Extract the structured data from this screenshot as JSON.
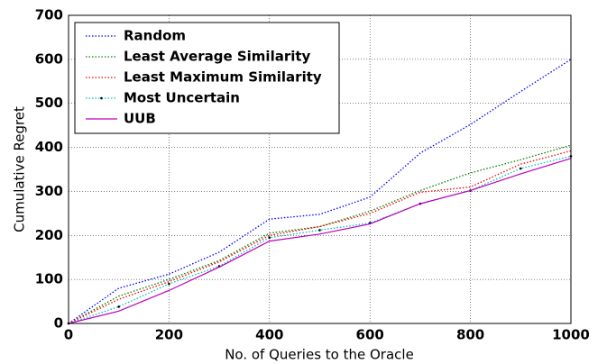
{
  "chart_data": {
    "type": "line",
    "xlabel": "No. of Queries to the Oracle",
    "ylabel": "Cumulative Regret",
    "x": [
      0,
      100,
      200,
      300,
      400,
      500,
      600,
      700,
      800,
      900,
      1000
    ],
    "series": [
      {
        "name": "Random",
        "color": "#0000ff",
        "linestyle": "dotted",
        "values": [
          0,
          80,
          112,
          162,
          237,
          248,
          287,
          387,
          452,
          527,
          600
        ]
      },
      {
        "name": "Least Average Similarity",
        "color": "#008000",
        "linestyle": "dotted",
        "values": [
          0,
          62,
          100,
          143,
          205,
          220,
          255,
          302,
          342,
          372,
          405
        ]
      },
      {
        "name": "Least Maximum Similarity",
        "color": "#ff0000",
        "linestyle": "dotted",
        "values": [
          0,
          55,
          95,
          140,
          200,
          220,
          250,
          298,
          310,
          362,
          392
        ]
      },
      {
        "name": "Most Uncertain",
        "color": "#00bfbf",
        "linestyle": "dotted",
        "marker_color": "#000000",
        "values": [
          0,
          38,
          90,
          130,
          195,
          212,
          228,
          272,
          302,
          352,
          380
        ]
      },
      {
        "name": "UUB",
        "color": "#bf00bf",
        "linestyle": "solid",
        "values": [
          0,
          28,
          75,
          128,
          187,
          203,
          226,
          272,
          302,
          340,
          375
        ]
      }
    ],
    "xlim": [
      0,
      1000
    ],
    "xticks": [
      0,
      200,
      400,
      600,
      800,
      1000
    ],
    "ylim": [
      0,
      700
    ],
    "yticks": [
      0,
      100,
      200,
      300,
      400,
      500,
      600,
      700
    ],
    "grid": true,
    "legend": "upper left"
  }
}
